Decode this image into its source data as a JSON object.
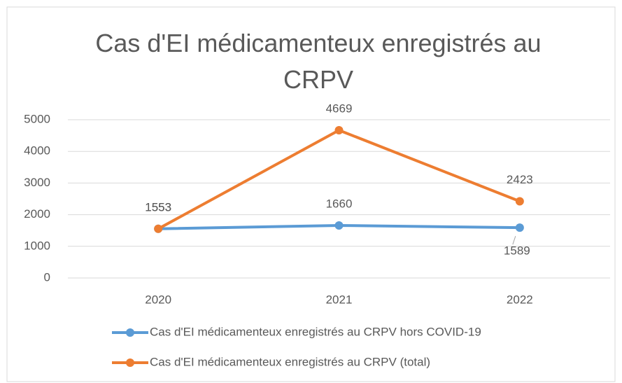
{
  "chart_data": {
    "type": "line",
    "title": "Cas d'EI médicamenteux enregistrés au CRPV",
    "categories": [
      "2020",
      "2021",
      "2022"
    ],
    "series": [
      {
        "name": "Cas d'EI médicamenteux enregistrés au CRPV hors COVID-19",
        "color": "#5b9bd5",
        "values": [
          1553,
          1660,
          1589
        ]
      },
      {
        "name": "Cas d'EI médicamenteux enregistrés au CRPV (total)",
        "color": "#ed7d31",
        "values": [
          1553,
          4669,
          2423
        ]
      }
    ],
    "ylim": [
      0,
      5000
    ],
    "yticks": [
      0,
      1000,
      2000,
      3000,
      4000,
      5000
    ],
    "grid": true,
    "legend": "bottom"
  }
}
